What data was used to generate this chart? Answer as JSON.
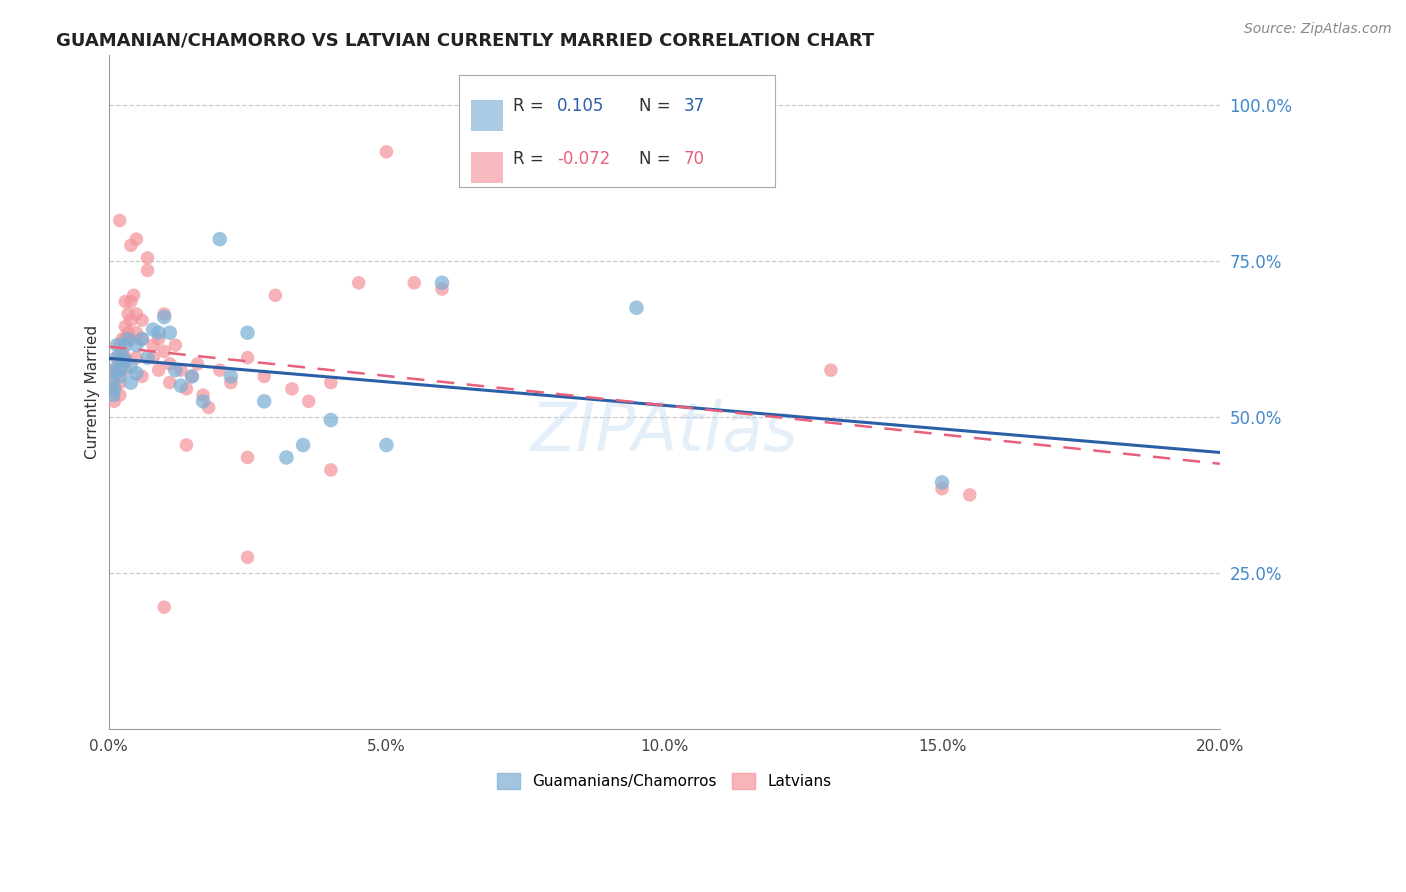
{
  "title": "GUAMANIAN/CHAMORRO VS LATVIAN CURRENTLY MARRIED CORRELATION CHART",
  "source": "Source: ZipAtlas.com",
  "ylabel": "Currently Married",
  "right_yticks": [
    "100.0%",
    "75.0%",
    "50.0%",
    "25.0%"
  ],
  "right_ytick_vals": [
    1.0,
    0.75,
    0.5,
    0.25
  ],
  "xmin": 0.0,
  "xmax": 0.2,
  "ymin": 0.0,
  "ymax": 1.08,
  "legend_blue_label": "Guamanians/Chamorros",
  "legend_pink_label": "Latvians",
  "blue_color": "#7BAFD4",
  "pink_color": "#F4949C",
  "blue_line_color": "#2B5FA8",
  "pink_line_color": "#E8607A",
  "watermark": "ZIPAtlas",
  "blue_dots": [
    [
      0.0005,
      0.555
    ],
    [
      0.0008,
      0.535
    ],
    [
      0.001,
      0.545
    ],
    [
      0.001,
      0.575
    ],
    [
      0.0015,
      0.615
    ],
    [
      0.0015,
      0.595
    ],
    [
      0.002,
      0.575
    ],
    [
      0.002,
      0.565
    ],
    [
      0.0025,
      0.595
    ],
    [
      0.003,
      0.615
    ],
    [
      0.003,
      0.59
    ],
    [
      0.0035,
      0.625
    ],
    [
      0.004,
      0.58
    ],
    [
      0.004,
      0.555
    ],
    [
      0.005,
      0.615
    ],
    [
      0.005,
      0.57
    ],
    [
      0.006,
      0.625
    ],
    [
      0.007,
      0.595
    ],
    [
      0.008,
      0.64
    ],
    [
      0.009,
      0.635
    ],
    [
      0.01,
      0.66
    ],
    [
      0.011,
      0.635
    ],
    [
      0.012,
      0.575
    ],
    [
      0.013,
      0.55
    ],
    [
      0.015,
      0.565
    ],
    [
      0.017,
      0.525
    ],
    [
      0.02,
      0.785
    ],
    [
      0.022,
      0.565
    ],
    [
      0.025,
      0.635
    ],
    [
      0.028,
      0.525
    ],
    [
      0.032,
      0.435
    ],
    [
      0.035,
      0.455
    ],
    [
      0.04,
      0.495
    ],
    [
      0.05,
      0.455
    ],
    [
      0.06,
      0.715
    ],
    [
      0.095,
      0.675
    ],
    [
      0.15,
      0.395
    ]
  ],
  "pink_dots": [
    [
      0.0005,
      0.545
    ],
    [
      0.0008,
      0.575
    ],
    [
      0.001,
      0.565
    ],
    [
      0.001,
      0.545
    ],
    [
      0.001,
      0.525
    ],
    [
      0.0015,
      0.595
    ],
    [
      0.0015,
      0.575
    ],
    [
      0.002,
      0.615
    ],
    [
      0.002,
      0.585
    ],
    [
      0.002,
      0.555
    ],
    [
      0.002,
      0.535
    ],
    [
      0.0025,
      0.625
    ],
    [
      0.0025,
      0.605
    ],
    [
      0.003,
      0.645
    ],
    [
      0.003,
      0.625
    ],
    [
      0.003,
      0.595
    ],
    [
      0.003,
      0.575
    ],
    [
      0.0035,
      0.665
    ],
    [
      0.0035,
      0.635
    ],
    [
      0.004,
      0.685
    ],
    [
      0.004,
      0.655
    ],
    [
      0.004,
      0.625
    ],
    [
      0.0045,
      0.695
    ],
    [
      0.005,
      0.665
    ],
    [
      0.005,
      0.635
    ],
    [
      0.005,
      0.595
    ],
    [
      0.006,
      0.655
    ],
    [
      0.006,
      0.625
    ],
    [
      0.006,
      0.565
    ],
    [
      0.007,
      0.755
    ],
    [
      0.007,
      0.735
    ],
    [
      0.008,
      0.615
    ],
    [
      0.008,
      0.595
    ],
    [
      0.009,
      0.575
    ],
    [
      0.009,
      0.625
    ],
    [
      0.01,
      0.665
    ],
    [
      0.01,
      0.605
    ],
    [
      0.011,
      0.585
    ],
    [
      0.011,
      0.555
    ],
    [
      0.012,
      0.615
    ],
    [
      0.013,
      0.575
    ],
    [
      0.014,
      0.545
    ],
    [
      0.015,
      0.565
    ],
    [
      0.016,
      0.585
    ],
    [
      0.017,
      0.535
    ],
    [
      0.018,
      0.515
    ],
    [
      0.02,
      0.575
    ],
    [
      0.022,
      0.555
    ],
    [
      0.025,
      0.595
    ],
    [
      0.025,
      0.435
    ],
    [
      0.028,
      0.565
    ],
    [
      0.03,
      0.695
    ],
    [
      0.033,
      0.545
    ],
    [
      0.036,
      0.525
    ],
    [
      0.04,
      0.415
    ],
    [
      0.04,
      0.555
    ],
    [
      0.045,
      0.715
    ],
    [
      0.05,
      0.925
    ],
    [
      0.055,
      0.715
    ],
    [
      0.06,
      0.705
    ],
    [
      0.002,
      0.815
    ],
    [
      0.004,
      0.775
    ],
    [
      0.003,
      0.685
    ],
    [
      0.005,
      0.785
    ],
    [
      0.13,
      0.575
    ],
    [
      0.15,
      0.385
    ],
    [
      0.155,
      0.375
    ],
    [
      0.01,
      0.195
    ],
    [
      0.025,
      0.275
    ],
    [
      0.014,
      0.455
    ]
  ],
  "blue_dot_size": 110,
  "pink_dot_size": 95
}
